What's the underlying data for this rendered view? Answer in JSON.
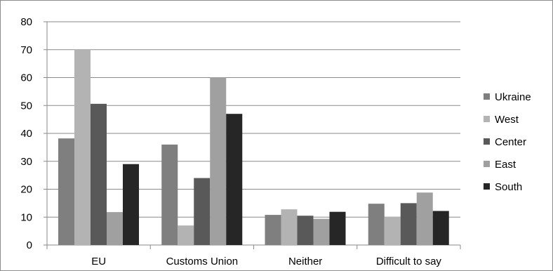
{
  "chart_data": {
    "type": "bar",
    "categories": [
      "EU",
      "Customs Union",
      "Neither",
      "Difficult to say"
    ],
    "series": [
      {
        "name": "Ukraine",
        "color": "#7f7f7f",
        "values": [
          38.2,
          36.0,
          10.8,
          14.8
        ]
      },
      {
        "name": "West",
        "color": "#b3b3b3",
        "values": [
          70.0,
          7.0,
          12.8,
          10.1
        ]
      },
      {
        "name": "Center",
        "color": "#595959",
        "values": [
          50.6,
          24.0,
          10.5,
          15.0
        ]
      },
      {
        "name": "East",
        "color": "#a0a0a0",
        "values": [
          11.8,
          60.1,
          9.4,
          18.8
        ]
      },
      {
        "name": "South",
        "color": "#262626",
        "values": [
          29.0,
          47.0,
          11.9,
          12.2
        ]
      }
    ],
    "yticks": [
      "0",
      "10",
      "20",
      "30",
      "40",
      "50",
      "60",
      "70",
      "80"
    ],
    "ylim": [
      0,
      80
    ],
    "grid": true,
    "legend_position": "right"
  }
}
